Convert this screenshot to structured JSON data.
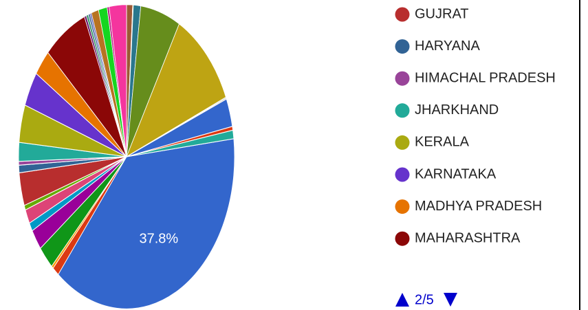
{
  "chart_data": {
    "type": "pie",
    "categories": [
      null,
      null,
      null,
      null,
      null,
      null,
      null,
      null,
      "GUJRAT",
      "HARYANA",
      "HIMACHAL PRADESH",
      "JHARKHAND",
      "KERALA",
      "KARNATAKA",
      "MADHYA PRADESH",
      "MAHARASHTRA",
      null,
      null,
      null,
      null,
      null,
      null,
      null,
      null,
      null,
      null,
      null,
      null,
      null,
      null,
      null,
      null,
      null,
      null
    ],
    "values": [
      37.8,
      1.0,
      0.3,
      2.5,
      2.2,
      0.9,
      1.5,
      0.5,
      3.5,
      0.8,
      0.4,
      2.0,
      4.0,
      3.7,
      2.8,
      6.6,
      0.3,
      0.3,
      0.3,
      0.2,
      1.1,
      1.3,
      0.3,
      2.6,
      0.9,
      0.1,
      1.1,
      6.0,
      10.5,
      0.1,
      0.1,
      3.0,
      0.4,
      0.9
    ],
    "value_labels": [
      "37.8%",
      null,
      null,
      null,
      null,
      null,
      null,
      null,
      null,
      null,
      null,
      null,
      null,
      null,
      null,
      null,
      null,
      null,
      null,
      null,
      null,
      null,
      null,
      null,
      null,
      null,
      null,
      null,
      null,
      null,
      null,
      null,
      null,
      null
    ],
    "colors": [
      "#3366cc",
      "#dc3912",
      "#ff9900",
      "#109618",
      "#990099",
      "#0099c6",
      "#dd4477",
      "#66aa00",
      "#b82e2e",
      "#316395",
      "#994499",
      "#22aa99",
      "#aaaa11",
      "#6633cc",
      "#e67300",
      "#8b0707",
      "#651067",
      "#329262",
      "#5574a6",
      "#3b3eac",
      "#b77322",
      "#16d620",
      "#b91383",
      "#f4359e",
      "#9c5935",
      "#a9c413",
      "#2a778d",
      "#668d1c",
      "#bea413",
      "#0c5922",
      "#743411",
      "#3366cc",
      "#dc3912",
      "#22aa99"
    ],
    "start_angle": 83.2,
    "legend_page": "2/5"
  }
}
